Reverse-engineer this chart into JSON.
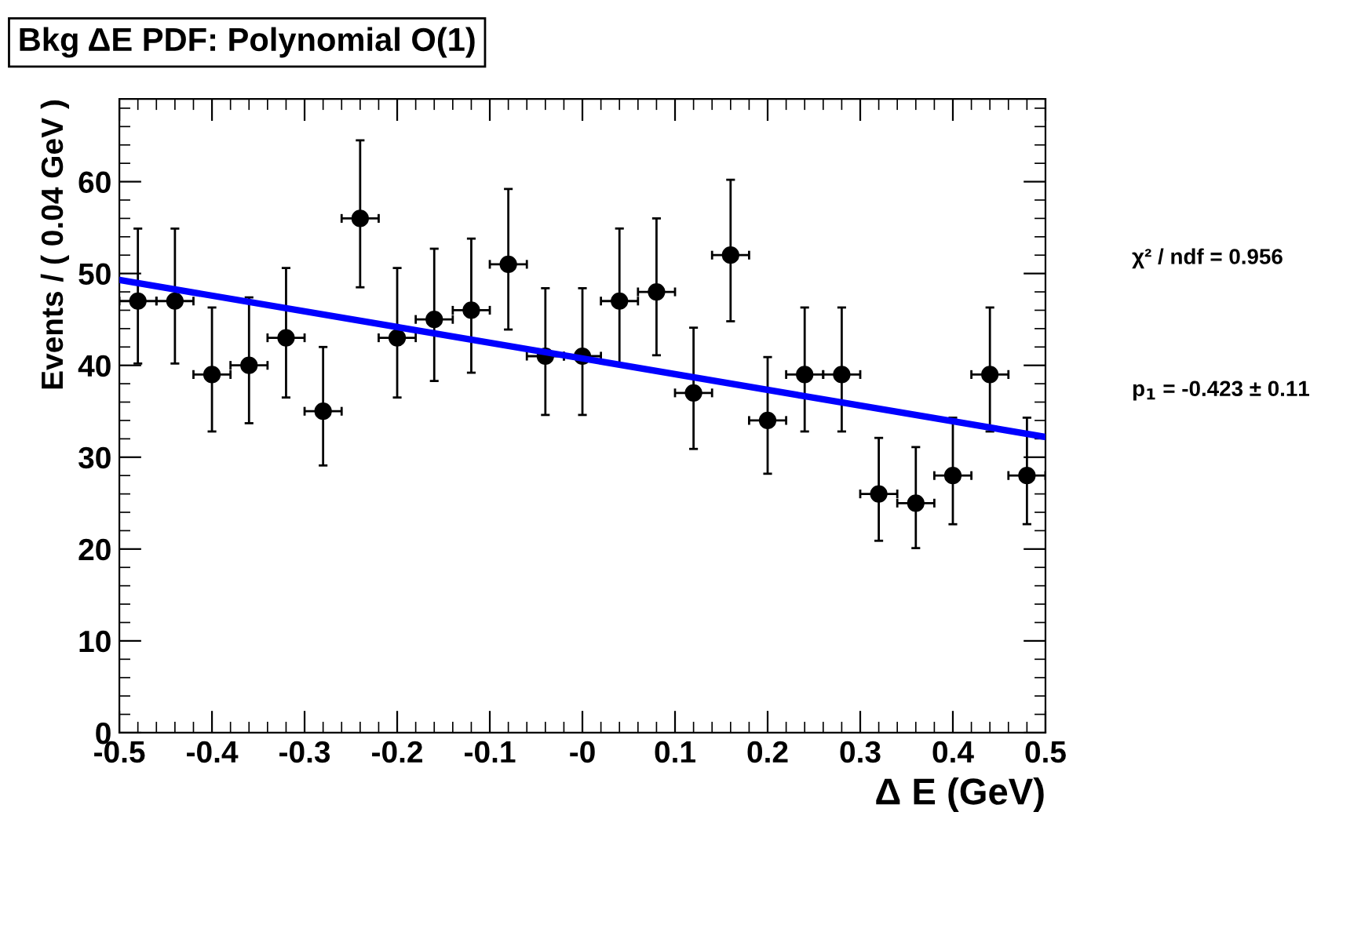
{
  "chart_data": {
    "type": "scatter",
    "title": "Bkg ΔE PDF: Polynomial O(1)",
    "xlabel": "Δ E (GeV)",
    "ylabel": "Events / ( 0.04 GeV )",
    "x": [
      -0.48,
      -0.44,
      -0.4,
      -0.36,
      -0.32,
      -0.28,
      -0.24,
      -0.2,
      -0.16,
      -0.12,
      -0.08,
      -0.04,
      0.0,
      0.04,
      0.08,
      0.12,
      0.16,
      0.2,
      0.24,
      0.28,
      0.32,
      0.36,
      0.4,
      0.44,
      0.48
    ],
    "series": [
      {
        "color": "#000000",
        "marker": "circle",
        "values": [
          47,
          47,
          39,
          40,
          43,
          35,
          56,
          43,
          45,
          46,
          51,
          41,
          41,
          47,
          48,
          37,
          52,
          34,
          39,
          39,
          26,
          25,
          28,
          39,
          28
        ],
        "errors": [
          [
            40.2,
            54.9
          ],
          [
            40.2,
            54.9
          ],
          [
            32.8,
            46.3
          ],
          [
            33.7,
            47.4
          ],
          [
            36.5,
            50.6
          ],
          [
            29.1,
            42.0
          ],
          [
            48.5,
            64.5
          ],
          [
            36.5,
            50.6
          ],
          [
            38.3,
            52.7
          ],
          [
            39.2,
            53.8
          ],
          [
            43.9,
            59.2
          ],
          [
            34.6,
            48.4
          ],
          [
            34.6,
            48.4
          ],
          [
            40.2,
            54.9
          ],
          [
            41.1,
            56.0
          ],
          [
            30.9,
            44.1
          ],
          [
            44.8,
            60.2
          ],
          [
            28.2,
            40.9
          ],
          [
            32.8,
            46.3
          ],
          [
            32.8,
            46.3
          ],
          [
            20.9,
            32.1
          ],
          [
            20.1,
            31.1
          ],
          [
            22.7,
            34.3
          ],
          [
            32.8,
            46.3
          ],
          [
            22.7,
            34.3
          ]
        ],
        "xerrors": [
          0.02,
          0.02,
          0.02,
          0.02,
          0.02,
          0.02,
          0.02,
          0.02,
          0.02,
          0.02,
          0.02,
          0.02,
          0.02,
          0.02,
          0.02,
          0.02,
          0.02,
          0.02,
          0.02,
          0.02,
          0.02,
          0.02,
          0.02,
          0.02,
          0.02
        ]
      },
      {
        "type": "line",
        "color": "#0000ff",
        "x": [
          -0.5,
          0.5
        ],
        "values": [
          49.3,
          32.2
        ]
      }
    ],
    "xlim": [
      -0.5,
      0.5
    ],
    "ylim": [
      0,
      69
    ],
    "xticks": [
      -0.5,
      -0.4,
      -0.3,
      -0.2,
      -0.1,
      {
        "value": 0,
        "label": "-0"
      },
      0.1,
      0.2,
      0.3,
      0.4,
      0.5
    ],
    "yticks": [
      0,
      10,
      20,
      30,
      40,
      50,
      60
    ],
    "annotations": [
      "χ² / ndf = 0.956",
      "p$_{1}$ = -0.423 ± 0.11"
    ],
    "grid": false,
    "legend": false
  }
}
